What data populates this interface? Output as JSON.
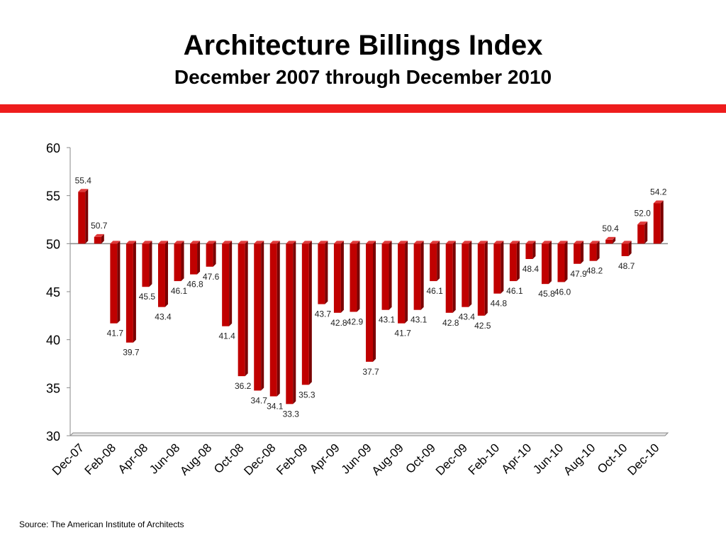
{
  "slide": {
    "title": "Architecture Billings Index",
    "subtitle": "December 2007 through December 2010",
    "source": "Source:  The American Institute of Architects"
  },
  "colors": {
    "accent_rule": "#ee1c1c",
    "bar_fill": "#c00000",
    "bar_dark": "#7a0000",
    "bar_light": "#e03a3a",
    "axis": "#888888"
  },
  "chart_data": {
    "type": "bar",
    "title": "",
    "xlabel": "",
    "ylabel": "",
    "baseline": 50,
    "ylim": [
      30,
      60
    ],
    "yticks": [
      30,
      35,
      40,
      45,
      50,
      55,
      60
    ],
    "grid": false,
    "categories": [
      "Dec-07",
      "Jan-08",
      "Feb-08",
      "Mar-08",
      "Apr-08",
      "May-08",
      "Jun-08",
      "Jul-08",
      "Aug-08",
      "Sep-08",
      "Oct-08",
      "Nov-08",
      "Dec-08",
      "Jan-09",
      "Feb-09",
      "Mar-09",
      "Apr-09",
      "May-09",
      "Jun-09",
      "Jul-09",
      "Aug-09",
      "Sep-09",
      "Oct-09",
      "Nov-09",
      "Dec-09",
      "Jan-10",
      "Feb-10",
      "Mar-10",
      "Apr-10",
      "May-10",
      "Jun-10",
      "Jul-10",
      "Aug-10",
      "Sep-10",
      "Oct-10",
      "Nov-10",
      "Dec-10"
    ],
    "xtick_labels": [
      "Dec-07",
      "Feb-08",
      "Apr-08",
      "Jun-08",
      "Aug-08",
      "Oct-08",
      "Dec-08",
      "Feb-09",
      "Apr-09",
      "Jun-09",
      "Aug-09",
      "Oct-09",
      "Dec-09",
      "Feb-10",
      "Apr-10",
      "Jun-10",
      "Aug-10",
      "Oct-10",
      "Dec-10"
    ],
    "values": [
      55.4,
      50.7,
      41.7,
      39.7,
      45.5,
      43.4,
      46.1,
      46.8,
      47.6,
      41.4,
      36.2,
      34.7,
      34.1,
      33.3,
      35.3,
      43.7,
      42.8,
      42.9,
      37.7,
      43.1,
      41.7,
      43.1,
      46.1,
      42.8,
      43.4,
      42.5,
      44.8,
      46.1,
      48.4,
      45.8,
      46.0,
      47.9,
      48.2,
      50.4,
      48.7,
      52.0,
      54.2
    ],
    "value_labels": [
      "55.4",
      "50.7",
      "41.7",
      "39.7",
      "45.5",
      "43.4",
      "46.1",
      "46.8",
      "47.6",
      "41.4",
      "36.2",
      "34.7",
      "34.1",
      "33.3",
      "35.3",
      "43.7",
      "42.8",
      "42.9",
      "37.7",
      "43.1",
      "41.7",
      "43.1",
      "46.1",
      "42.8",
      "43.4",
      "42.5",
      "44.8",
      "46.1",
      "48.4",
      "45.8",
      "46.0",
      "47.9",
      "48.2",
      "50.4",
      "48.7",
      "52.0",
      "54.2"
    ]
  }
}
